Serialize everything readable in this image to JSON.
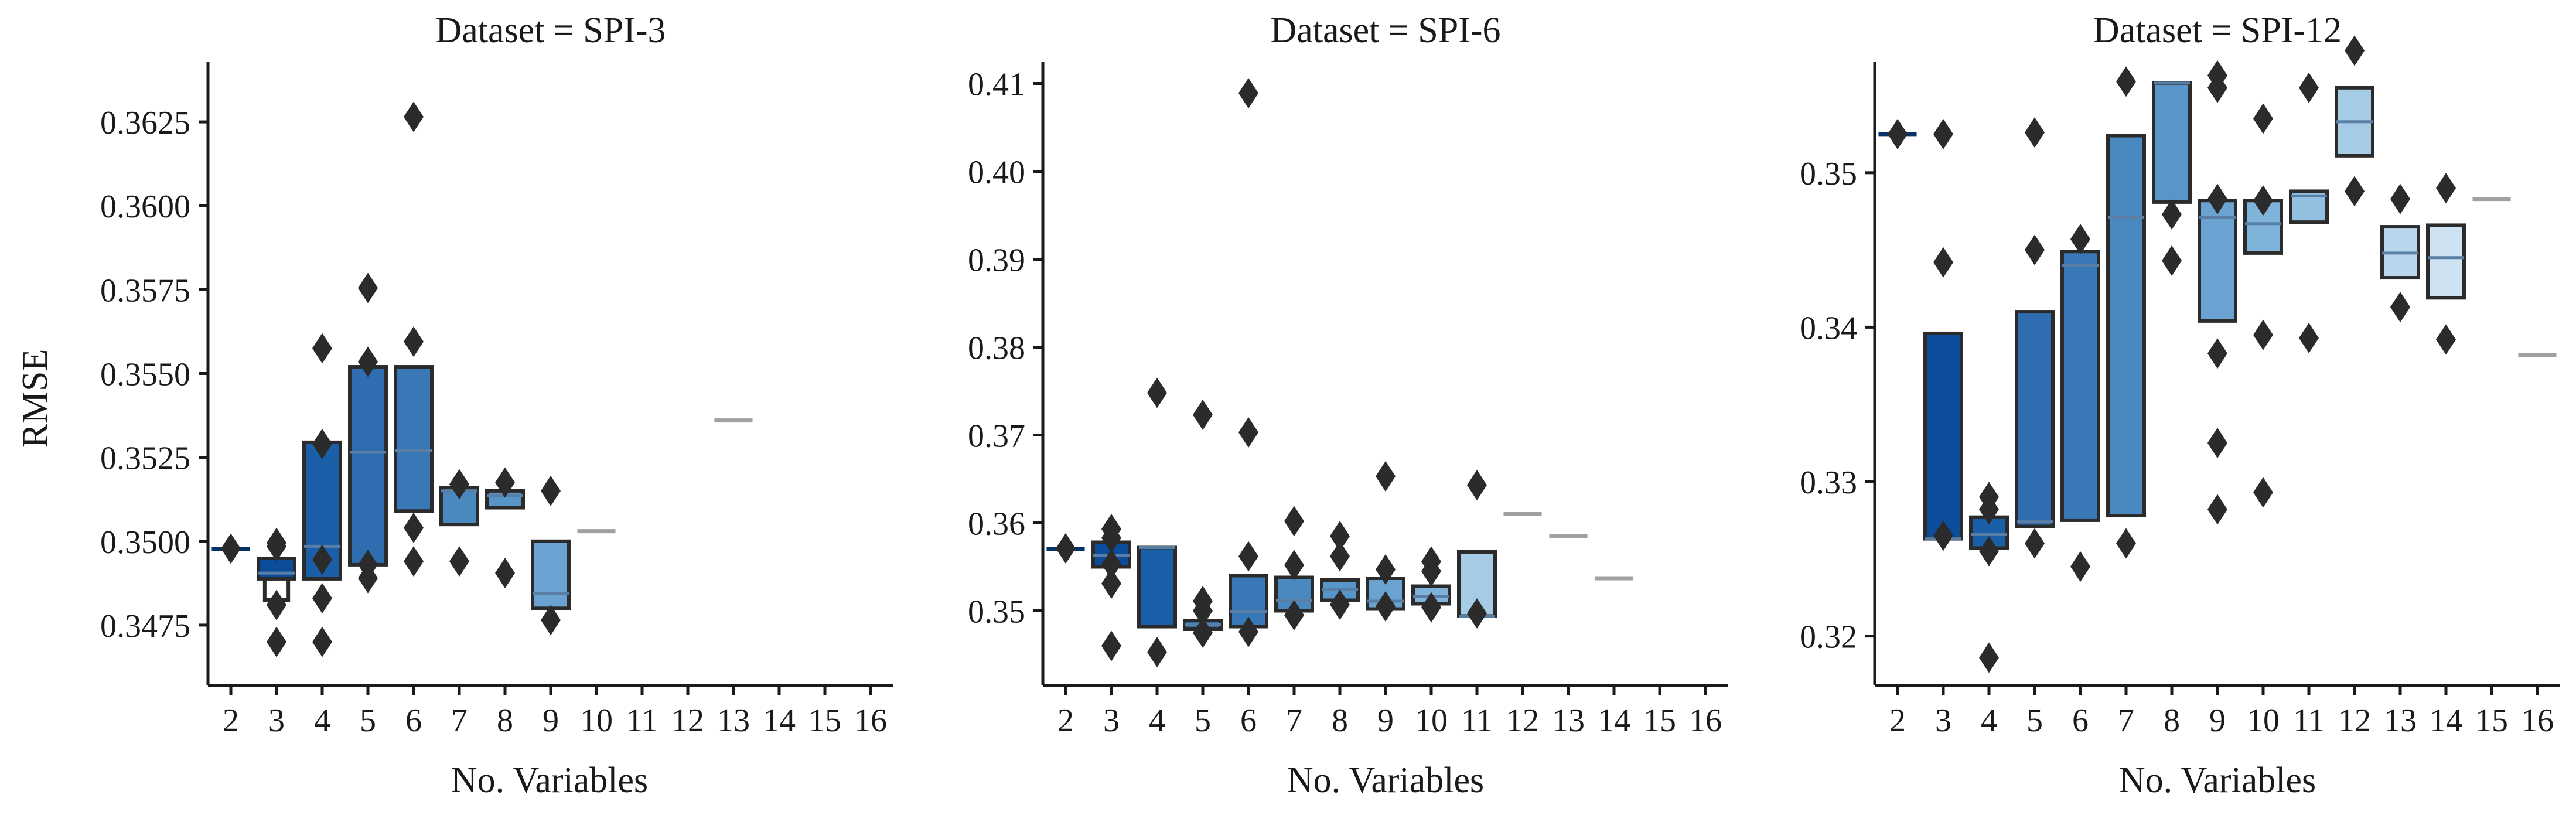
{
  "figure": {
    "ylabel": "RMSE",
    "colors": {
      "axis": "#1a1a1a",
      "box_edge": "#2b2b2b",
      "flier": "#2b2b2b",
      "single_value_line": "#a0a0a0"
    }
  },
  "chart_data": [
    {
      "type": "boxen",
      "title": "Dataset = SPI-3",
      "xlabel": "No. Variables",
      "ylabel": "RMSE",
      "ylim": [
        0.3457,
        0.3643
      ],
      "yticks": [
        "0.3475",
        "0.3500",
        "0.3525",
        "0.3550",
        "0.3575",
        "0.3600",
        "0.3625"
      ],
      "categories": [
        "2",
        "3",
        "4",
        "5",
        "6",
        "7",
        "8",
        "9",
        "10",
        "11",
        "12",
        "13",
        "14",
        "15",
        "16"
      ],
      "boxes": [
        {
          "x": "2",
          "color": "#08306b",
          "boxes": [],
          "median": 0.34976,
          "fliers": [
            0.34978
          ]
        },
        {
          "x": "3",
          "color": "#0b4d9a",
          "boxes": [
            [
              0.34888,
              0.34949
            ],
            [
              0.34825,
              0.34888
            ]
          ],
          "median": 0.34905,
          "fliers": [
            0.34995,
            0.34985,
            0.3481,
            0.347
          ]
        },
        {
          "x": "4",
          "color": "#1a5fa8",
          "boxes": [
            [
              0.34888,
              0.35295
            ]
          ],
          "median": 0.34985,
          "fliers": [
            0.35575,
            0.3529,
            0.34945,
            0.3483,
            0.347
          ]
        },
        {
          "x": "5",
          "color": "#2d6db0",
          "boxes": [
            [
              0.3493,
              0.3552
            ]
          ],
          "median": 0.35265,
          "fliers": [
            0.35755,
            0.35535,
            0.3493,
            0.3489
          ]
        },
        {
          "x": "6",
          "color": "#3878b7",
          "boxes": [
            [
              0.3509,
              0.3552
            ]
          ],
          "median": 0.3527,
          "fliers": [
            0.36265,
            0.35595,
            0.3504,
            0.3494
          ]
        },
        {
          "x": "7",
          "color": "#4a88c0",
          "boxes": [
            [
              0.3505,
              0.3516
            ]
          ],
          "median": 0.3515,
          "fliers": [
            0.3517,
            0.3494
          ]
        },
        {
          "x": "8",
          "color": "#5896c9",
          "boxes": [
            [
              0.351,
              0.3515
            ]
          ],
          "median": 0.35135,
          "fliers": [
            0.35175,
            0.34905
          ]
        },
        {
          "x": "9",
          "color": "#6aa3d1",
          "boxes": [
            [
              0.348,
              0.35
            ]
          ],
          "median": 0.34845,
          "fliers": [
            0.3515,
            0.34765
          ]
        },
        {
          "x": "10",
          "color": "#a0a0a0",
          "boxes": [],
          "median": 0.3503,
          "fliers": []
        },
        {
          "x": "13",
          "color": "#a0a0a0",
          "boxes": [],
          "median": 0.3536,
          "fliers": []
        }
      ]
    },
    {
      "type": "boxen",
      "title": "Dataset = SPI-6",
      "xlabel": "No. Variables",
      "ylabel": "",
      "ylim": [
        0.3415,
        0.4125
      ],
      "yticks": [
        "0.35",
        "0.36",
        "0.37",
        "0.38",
        "0.39",
        "0.40",
        "0.41"
      ],
      "categories": [
        "2",
        "3",
        "4",
        "5",
        "6",
        "7",
        "8",
        "9",
        "10",
        "11",
        "12",
        "13",
        "14",
        "15",
        "16"
      ],
      "boxes": [
        {
          "x": "2",
          "color": "#08306b",
          "boxes": [],
          "median": 0.357,
          "fliers": [
            0.3571
          ]
        },
        {
          "x": "3",
          "color": "#0b4d9a",
          "boxes": [
            [
              0.355,
              0.3578
            ]
          ],
          "median": 0.3563,
          "fliers": [
            0.3593,
            0.3583,
            0.3553,
            0.3531,
            0.346
          ]
        },
        {
          "x": "4",
          "color": "#1a5fa8",
          "boxes": [
            [
              0.3482,
              0.3572
            ]
          ],
          "median": 0.3572,
          "fliers": [
            0.3748,
            0.3453
          ]
        },
        {
          "x": "5",
          "color": "#2d6db0",
          "boxes": [
            [
              0.3479,
              0.3489
            ]
          ],
          "median": 0.3484,
          "fliers": [
            0.3723,
            0.3511,
            0.35,
            0.3475
          ]
        },
        {
          "x": "6",
          "color": "#3878b7",
          "boxes": [
            [
              0.3482,
              0.354
            ]
          ],
          "median": 0.3499,
          "fliers": [
            0.4089,
            0.3703,
            0.3562,
            0.3476
          ]
        },
        {
          "x": "7",
          "color": "#4a88c0",
          "boxes": [
            [
              0.35,
              0.3538
            ]
          ],
          "median": 0.3512,
          "fliers": [
            0.3602,
            0.3552,
            0.3495
          ]
        },
        {
          "x": "8",
          "color": "#5896c9",
          "boxes": [
            [
              0.3512,
              0.3535
            ]
          ],
          "median": 0.3524,
          "fliers": [
            0.3585,
            0.3562,
            0.3507
          ]
        },
        {
          "x": "9",
          "color": "#6aa3d1",
          "boxes": [
            [
              0.3502,
              0.3537
            ]
          ],
          "median": 0.3511,
          "fliers": [
            0.3653,
            0.3547,
            0.3505
          ]
        },
        {
          "x": "10",
          "color": "#7fb3da",
          "boxes": [
            [
              0.3508,
              0.3528
            ]
          ],
          "median": 0.3516,
          "fliers": [
            0.3556,
            0.3545,
            0.3504
          ]
        },
        {
          "x": "11",
          "color": "#a6cbe6",
          "boxes": [
            [
              0.3494,
              0.3567
            ]
          ],
          "median": 0.3494,
          "fliers": [
            0.3643,
            0.3497
          ]
        },
        {
          "x": "12",
          "color": "#a0a0a0",
          "boxes": [],
          "median": 0.361,
          "fliers": []
        },
        {
          "x": "13",
          "color": "#a0a0a0",
          "boxes": [],
          "median": 0.3585,
          "fliers": []
        },
        {
          "x": "14",
          "color": "#a0a0a0",
          "boxes": [],
          "median": 0.3537,
          "fliers": []
        }
      ]
    },
    {
      "type": "boxen",
      "title": "Dataset = SPI-12",
      "xlabel": "No. Variables",
      "ylabel": "",
      "ylim": [
        0.3168,
        0.3572
      ],
      "yticks": [
        "0.32",
        "0.33",
        "0.34",
        "0.35"
      ],
      "categories": [
        "2",
        "3",
        "4",
        "5",
        "6",
        "7",
        "8",
        "9",
        "10",
        "11",
        "12",
        "13",
        "14",
        "15",
        "16"
      ],
      "boxes": [
        {
          "x": "2",
          "color": "#08306b",
          "boxes": [],
          "median": 0.3525,
          "fliers": [
            0.3525
          ]
        },
        {
          "x": "3",
          "color": "#0b4d9a",
          "boxes": [
            [
              0.3263,
              0.3396
            ]
          ],
          "median": 0.3263,
          "fliers": [
            0.3525,
            0.3442,
            0.3265
          ]
        },
        {
          "x": "4",
          "color": "#1a5fa8",
          "boxes": [
            [
              0.3257,
              0.3277
            ]
          ],
          "median": 0.3266,
          "fliers": [
            0.329,
            0.3282,
            0.3255,
            0.3186
          ]
        },
        {
          "x": "5",
          "color": "#2d6db0",
          "boxes": [
            [
              0.3271,
              0.341
            ]
          ],
          "median": 0.3274,
          "fliers": [
            0.3526,
            0.345,
            0.326
          ]
        },
        {
          "x": "6",
          "color": "#3878b7",
          "boxes": [
            [
              0.3275,
              0.3449
            ]
          ],
          "median": 0.344,
          "fliers": [
            0.3457,
            0.3245
          ]
        },
        {
          "x": "7",
          "color": "#4a88c0",
          "boxes": [
            [
              0.3278,
              0.3524
            ]
          ],
          "median": 0.3471,
          "fliers": [
            0.3559,
            0.326
          ]
        },
        {
          "x": "8",
          "color": "#5896c9",
          "boxes": [
            [
              0.3481,
              0.3558
            ]
          ],
          "median": 0.3558,
          "fliers": [
            0.3473,
            0.3443
          ]
        },
        {
          "x": "9",
          "color": "#6aa3d1",
          "boxes": [
            [
              0.3404,
              0.3482
            ]
          ],
          "median": 0.3471,
          "fliers": [
            0.3563,
            0.3555,
            0.3483,
            0.3383,
            0.3325,
            0.3282
          ]
        },
        {
          "x": "10",
          "color": "#7fb3da",
          "boxes": [
            [
              0.3448,
              0.3482
            ]
          ],
          "median": 0.3467,
          "fliers": [
            0.3535,
            0.3482,
            0.3395,
            0.3293
          ]
        },
        {
          "x": "11",
          "color": "#93c0e0",
          "boxes": [
            [
              0.3468,
              0.3488
            ]
          ],
          "median": 0.3485,
          "fliers": [
            0.3555,
            0.3393
          ]
        },
        {
          "x": "12",
          "color": "#a6cbe6",
          "boxes": [
            [
              0.3511,
              0.3555
            ]
          ],
          "median": 0.3533,
          "fliers": [
            0.3579,
            0.3488
          ]
        },
        {
          "x": "13",
          "color": "#b9d6ec",
          "boxes": [
            [
              0.3432,
              0.3465
            ]
          ],
          "median": 0.3448,
          "fliers": [
            0.3483,
            0.3413
          ]
        },
        {
          "x": "14",
          "color": "#cfe2f2",
          "boxes": [
            [
              0.3419,
              0.3466
            ]
          ],
          "median": 0.3445,
          "fliers": [
            0.349,
            0.3392
          ]
        },
        {
          "x": "15",
          "color": "#a0a0a0",
          "boxes": [],
          "median": 0.3483,
          "fliers": []
        },
        {
          "x": "16",
          "color": "#a0a0a0",
          "boxes": [],
          "median": 0.3382,
          "fliers": []
        }
      ]
    }
  ]
}
